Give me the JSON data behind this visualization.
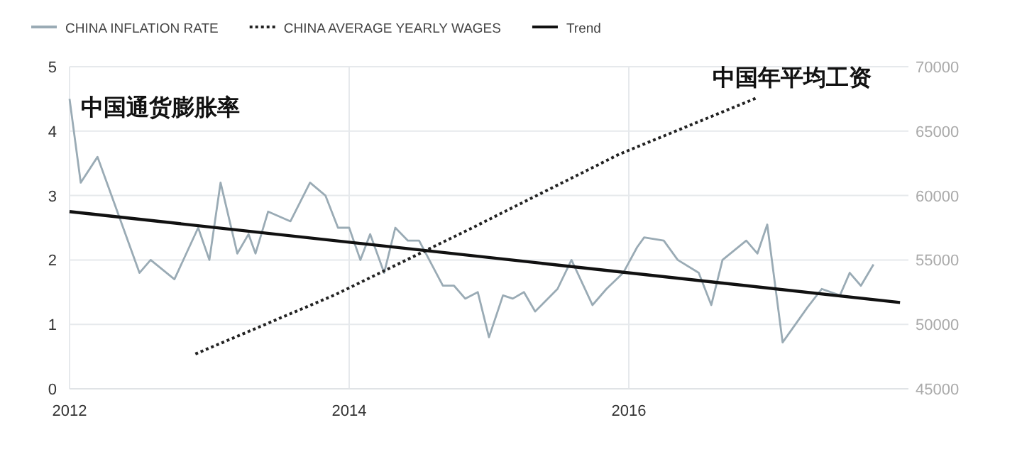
{
  "chart_data": {
    "type": "line",
    "xlim": [
      2012,
      2018
    ],
    "xticks": [
      2012,
      2014,
      2016
    ],
    "ylim": [
      0,
      5
    ],
    "yticks": [
      0,
      1,
      2,
      3,
      4,
      5
    ],
    "y2lim": [
      45000,
      70000
    ],
    "y2ticks": [
      45000,
      50000,
      55000,
      60000,
      65000,
      70000
    ],
    "grid": true,
    "legend": "top left",
    "annotations": [
      "中国通货膨胀率",
      "中国年平均工资"
    ],
    "series": [
      {
        "name": "CHINA INFLATION RATE",
        "color": "#9aabb5",
        "line_style": "solid",
        "x": [
          2012.0,
          2012.08,
          2012.2,
          2012.3,
          2012.5,
          2012.58,
          2012.75,
          2012.92,
          2013.0,
          2013.08,
          2013.2,
          2013.28,
          2013.33,
          2013.42,
          2013.58,
          2013.72,
          2013.83,
          2013.92,
          2014.0,
          2014.08,
          2014.15,
          2014.25,
          2014.33,
          2014.42,
          2014.5,
          2014.67,
          2014.75,
          2014.83,
          2014.92,
          2015.0,
          2015.1,
          2015.17,
          2015.25,
          2015.33,
          2015.49,
          2015.59,
          2015.74,
          2015.84,
          2015.96,
          2016.06,
          2016.11,
          2016.25,
          2016.35,
          2016.5,
          2016.59,
          2016.67,
          2016.84,
          2016.92,
          2016.99,
          2017.1,
          2017.28,
          2017.38,
          2017.51,
          2017.58,
          2017.66,
          2017.75
        ],
        "values": [
          4.5,
          3.2,
          3.6,
          3.0,
          1.8,
          2.0,
          1.7,
          2.5,
          2.0,
          3.2,
          2.1,
          2.4,
          2.1,
          2.75,
          2.6,
          3.2,
          3.0,
          2.5,
          2.5,
          2.0,
          2.4,
          1.8,
          2.5,
          2.3,
          2.3,
          1.6,
          1.6,
          1.4,
          1.5,
          0.8,
          1.45,
          1.4,
          1.5,
          1.2,
          1.55,
          2.0,
          1.3,
          1.55,
          1.8,
          2.2,
          2.35,
          2.3,
          2.0,
          1.8,
          1.3,
          2.0,
          2.3,
          2.1,
          2.55,
          0.72,
          1.27,
          1.55,
          1.45,
          1.8,
          1.6,
          1.93
        ]
      },
      {
        "name": "CHINA AVERAGE YEARLY WAGES",
        "color": "#222222",
        "line_style": "dotted",
        "axis": "y2",
        "x": [
          2012.9,
          2013.9,
          2014.9,
          2015.93,
          2016.92
        ],
        "values": [
          47700,
          52300,
          57600,
          63200,
          67600
        ]
      },
      {
        "name": "Trend",
        "color": "#111111",
        "line_style": "solid",
        "x": [
          2012.0,
          2017.94
        ],
        "values": [
          2.75,
          1.34
        ]
      }
    ]
  }
}
